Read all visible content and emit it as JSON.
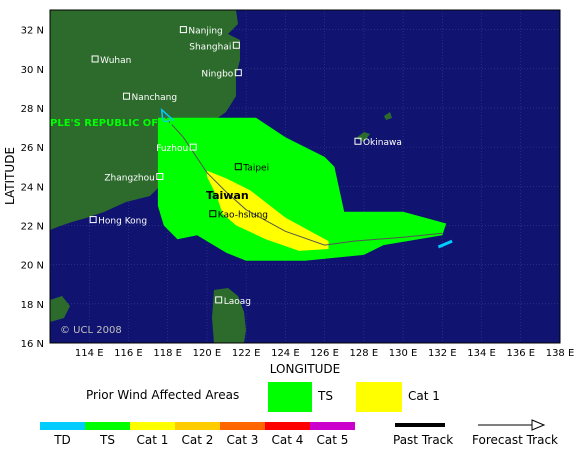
{
  "map": {
    "axis_x_title": "LONGITUDE",
    "axis_y_title": "LATITUDE",
    "x_ticks": [
      "114 E",
      "116 E",
      "118 E",
      "120 E",
      "122 E",
      "124 E",
      "126 E",
      "128 E",
      "130 E",
      "132 E",
      "134 E",
      "136 E",
      "138 E"
    ],
    "y_ticks": [
      "32 N",
      "30 N",
      "28 N",
      "26 N",
      "24 N",
      "22 N",
      "20 N",
      "18 N",
      "16 N"
    ],
    "country_label": "PLE'S REPUBLIC OF CHINA",
    "island_label": "Taiwan",
    "copyright": "© UCL 2008",
    "cities": [
      {
        "name": "Nanjing",
        "lon": 118.8,
        "lat": 32.0,
        "align": "right"
      },
      {
        "name": "Shanghai",
        "lon": 121.5,
        "lat": 31.2,
        "align": "left"
      },
      {
        "name": "Wuhan",
        "lon": 114.3,
        "lat": 30.5,
        "align": "right"
      },
      {
        "name": "Ningbo",
        "lon": 121.6,
        "lat": 29.8,
        "align": "left"
      },
      {
        "name": "Nanchang",
        "lon": 115.9,
        "lat": 28.6,
        "align": "right"
      },
      {
        "name": "Okinawa",
        "lon": 127.7,
        "lat": 26.3,
        "align": "right"
      },
      {
        "name": "Fuzhou",
        "lon": 119.3,
        "lat": 26.0,
        "align": "left"
      },
      {
        "name": "Taipei",
        "lon": 121.6,
        "lat": 25.0,
        "align": "right"
      },
      {
        "name": "Zhangzhou",
        "lon": 117.6,
        "lat": 24.5,
        "align": "left"
      },
      {
        "name": "Kao-hsiung",
        "lon": 120.3,
        "lat": 22.6,
        "align": "right"
      },
      {
        "name": "Hong Kong",
        "lon": 114.2,
        "lat": 22.3,
        "align": "right"
      },
      {
        "name": "Laoag",
        "lon": 120.6,
        "lat": 18.2,
        "align": "right"
      }
    ]
  },
  "legend": {
    "title": "Prior Wind Affected Areas",
    "items": [
      {
        "label": "TS",
        "color": "#00ff00"
      },
      {
        "label": "Cat 1",
        "color": "#ffff00"
      }
    ]
  },
  "colorbar": [
    {
      "label": "TD",
      "color": "#00ccff"
    },
    {
      "label": "TS",
      "color": "#00ff00"
    },
    {
      "label": "Cat 1",
      "color": "#ffff00"
    },
    {
      "label": "Cat 2",
      "color": "#ffcc00"
    },
    {
      "label": "Cat 3",
      "color": "#ff6600"
    },
    {
      "label": "Cat 4",
      "color": "#ff0000"
    },
    {
      "label": "Cat 5",
      "color": "#cc00cc"
    }
  ],
  "track_legend": {
    "past": "Past Track",
    "forecast": "Forecast Track"
  },
  "colors": {
    "ocean": "#101470",
    "land": "#2d6b2d",
    "ts_area": "#00ff00",
    "cat1_area": "#ffff00",
    "grid": "#3a3f8a",
    "track": "#00ccff"
  },
  "chart_data": {
    "type": "map",
    "xlim": [
      112,
      138
    ],
    "ylim": [
      16,
      33
    ],
    "ts_area": [
      [
        117.5,
        27.5
      ],
      [
        121,
        27.5
      ],
      [
        122.5,
        27.5
      ],
      [
        124,
        26.5
      ],
      [
        126,
        25.5
      ],
      [
        126.5,
        25
      ],
      [
        127,
        22.7
      ],
      [
        130,
        22.7
      ],
      [
        132.2,
        22.1
      ],
      [
        132,
        21.5
      ],
      [
        129,
        21
      ],
      [
        128,
        20.5
      ],
      [
        125,
        20.2
      ],
      [
        122,
        20.2
      ],
      [
        121,
        20.6
      ],
      [
        119.5,
        21.5
      ],
      [
        118.5,
        21.3
      ],
      [
        117.8,
        22
      ],
      [
        117.5,
        23
      ],
      [
        117.5,
        26
      ]
    ],
    "cat1_area": [
      [
        120,
        24.8
      ],
      [
        121,
        24.4
      ],
      [
        122.2,
        23.8
      ],
      [
        124,
        22.4
      ],
      [
        126.2,
        21.2
      ],
      [
        126.2,
        20.8
      ],
      [
        124.7,
        20.7
      ],
      [
        123,
        21.3
      ],
      [
        121.5,
        22
      ],
      [
        120.8,
        22.6
      ],
      [
        120.5,
        23.5
      ],
      [
        120,
        24.5
      ]
    ],
    "forecast_track": [
      [
        132,
        21.6
      ],
      [
        130,
        21.4
      ],
      [
        127.5,
        21.2
      ],
      [
        126,
        21
      ],
      [
        124,
        21.7
      ],
      [
        122,
        22.8
      ],
      [
        121,
        23.7
      ],
      [
        120,
        24.7
      ],
      [
        118.8,
        26.5
      ],
      [
        117.8,
        27.6
      ]
    ],
    "past_track": [
      [
        131.8,
        20.9
      ],
      [
        132.5,
        21.2
      ]
    ]
  }
}
